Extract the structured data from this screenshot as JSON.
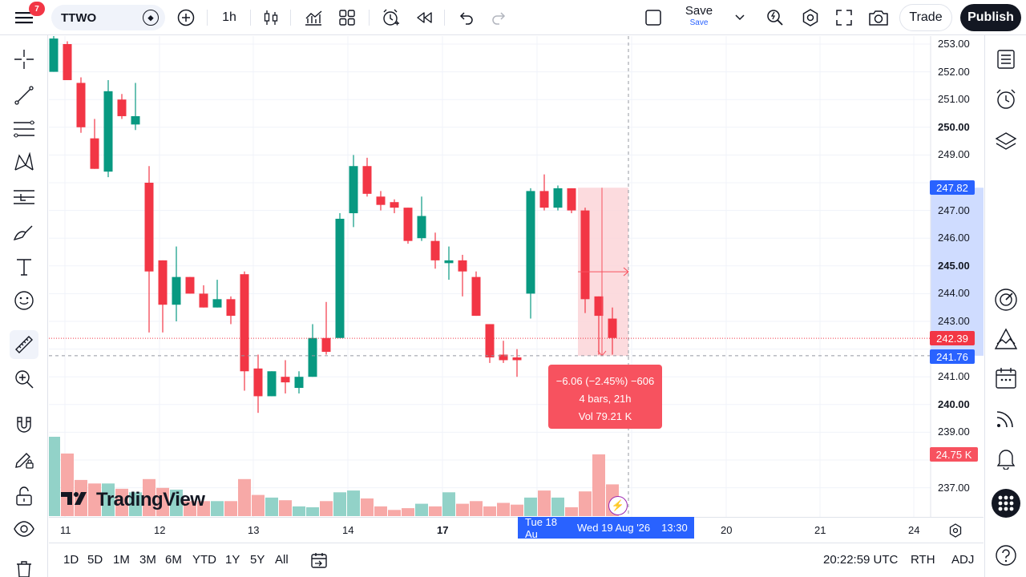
{
  "topbar": {
    "notification_count": "7",
    "symbol": "TTWO",
    "interval": "1h",
    "save_label": "Save",
    "save_sublabel": "Save",
    "trade_label": "Trade",
    "publish_label": "Publish"
  },
  "price_axis": {
    "labels": [
      "253.00",
      "252.00",
      "251.00",
      "250.00",
      "249.00",
      "247.00",
      "246.00",
      "245.00",
      "244.00",
      "243.00",
      "241.00",
      "240.00",
      "239.00",
      "237.00"
    ],
    "bold_labels": [
      "250.00",
      "245.00",
      "240.00"
    ],
    "tags": {
      "top_measure": "247.82",
      "last_price": "242.39",
      "bottom_measure": "241.76",
      "volume": "24.75 K"
    }
  },
  "time_axis": {
    "labels": [
      "11",
      "12",
      "13",
      "14",
      "17",
      "20",
      "21",
      "24"
    ],
    "tag_left": "Tue 18 Au",
    "tag_mid": "Wed 19 Aug '26",
    "tag_right": "13:30"
  },
  "measure": {
    "line1": "−6.06 (−2.45%) −606",
    "line2": "4 bars, 21h",
    "line3": "Vol 79.21 K"
  },
  "bottombar": {
    "ranges": [
      "1D",
      "5D",
      "1M",
      "3M",
      "6M",
      "YTD",
      "1Y",
      "5Y",
      "All"
    ],
    "clock": "20:22:59 UTC",
    "session": "RTH",
    "adjust": "ADJ"
  },
  "logo_text": "TradingView",
  "colors": {
    "up": "#089981",
    "down": "#f23645",
    "up_volume": "#92d2c8",
    "down_volume": "#f7a9a7",
    "accent": "#2962ff",
    "measure_fill": "#fbd5d8"
  },
  "chart_data": {
    "type": "candlestick",
    "symbol": "TTWO",
    "interval": "1h",
    "candles": [
      {
        "o": 252.0,
        "h": 253.5,
        "l": 252.0,
        "c": 253.2
      },
      {
        "o": 253.0,
        "h": 253.1,
        "l": 251.7,
        "c": 251.7
      },
      {
        "o": 251.6,
        "h": 251.8,
        "l": 249.8,
        "c": 250.0
      },
      {
        "o": 249.6,
        "h": 250.3,
        "l": 248.5,
        "c": 248.5
      },
      {
        "o": 248.4,
        "h": 251.7,
        "l": 248.2,
        "c": 251.3
      },
      {
        "o": 251.0,
        "h": 251.2,
        "l": 250.3,
        "c": 250.4
      },
      {
        "o": 250.1,
        "h": 251.6,
        "l": 249.9,
        "c": 250.4
      },
      {
        "o": 248.0,
        "h": 248.6,
        "l": 242.6,
        "c": 244.8
      },
      {
        "o": 245.2,
        "h": 245.2,
        "l": 242.6,
        "c": 243.6
      },
      {
        "o": 243.6,
        "h": 245.7,
        "l": 243.0,
        "c": 244.6
      },
      {
        "o": 244.6,
        "h": 244.6,
        "l": 244.0,
        "c": 244.0
      },
      {
        "o": 244.0,
        "h": 244.3,
        "l": 243.5,
        "c": 243.5
      },
      {
        "o": 243.5,
        "h": 244.5,
        "l": 243.5,
        "c": 243.8
      },
      {
        "o": 243.8,
        "h": 243.9,
        "l": 242.9,
        "c": 243.2
      },
      {
        "o": 244.7,
        "h": 244.8,
        "l": 240.5,
        "c": 241.2
      },
      {
        "o": 241.3,
        "h": 241.8,
        "l": 239.7,
        "c": 240.3
      },
      {
        "o": 240.3,
        "h": 241.2,
        "l": 240.3,
        "c": 241.2
      },
      {
        "o": 241.0,
        "h": 241.6,
        "l": 240.4,
        "c": 240.8
      },
      {
        "o": 240.6,
        "h": 241.2,
        "l": 240.4,
        "c": 241.0
      },
      {
        "o": 241.0,
        "h": 242.9,
        "l": 241.0,
        "c": 242.4
      },
      {
        "o": 242.4,
        "h": 243.7,
        "l": 241.8,
        "c": 241.9
      },
      {
        "o": 242.4,
        "h": 246.9,
        "l": 242.4,
        "c": 246.7
      },
      {
        "o": 246.9,
        "h": 249.0,
        "l": 246.4,
        "c": 248.6
      },
      {
        "o": 248.6,
        "h": 248.9,
        "l": 247.5,
        "c": 247.6
      },
      {
        "o": 247.5,
        "h": 247.7,
        "l": 247.0,
        "c": 247.2
      },
      {
        "o": 247.3,
        "h": 247.4,
        "l": 246.9,
        "c": 247.1
      },
      {
        "o": 247.1,
        "h": 247.1,
        "l": 245.8,
        "c": 245.9
      },
      {
        "o": 246.0,
        "h": 247.5,
        "l": 245.9,
        "c": 246.8
      },
      {
        "o": 245.9,
        "h": 246.2,
        "l": 244.9,
        "c": 245.2
      },
      {
        "o": 245.1,
        "h": 245.7,
        "l": 244.5,
        "c": 245.2
      },
      {
        "o": 245.2,
        "h": 245.4,
        "l": 243.9,
        "c": 244.8
      },
      {
        "o": 244.6,
        "h": 244.8,
        "l": 243.2,
        "c": 243.2
      },
      {
        "o": 242.9,
        "h": 242.9,
        "l": 241.5,
        "c": 241.7
      },
      {
        "o": 241.8,
        "h": 242.3,
        "l": 241.5,
        "c": 241.6
      },
      {
        "o": 241.7,
        "h": 242.0,
        "l": 241.0,
        "c": 241.6
      },
      {
        "o": 244.0,
        "h": 247.8,
        "l": 243.1,
        "c": 247.7
      },
      {
        "o": 247.7,
        "h": 248.3,
        "l": 247.0,
        "c": 247.1
      },
      {
        "o": 247.1,
        "h": 247.9,
        "l": 247.0,
        "c": 247.8
      },
      {
        "o": 247.8,
        "h": 247.8,
        "l": 246.9,
        "c": 247.0
      },
      {
        "o": 247.0,
        "h": 247.1,
        "l": 243.3,
        "c": 243.8
      },
      {
        "o": 243.9,
        "h": 243.9,
        "l": 241.8,
        "c": 243.2
      },
      {
        "o": 243.1,
        "h": 243.5,
        "l": 241.8,
        "c": 242.4
      }
    ],
    "volumes": [
      4.5,
      3.55,
      2.05,
      1.85,
      1.85,
      1.55,
      1.35,
      2.1,
      1.6,
      1.5,
      0.85,
      0.85,
      0.85,
      0.85,
      2.1,
      1.2,
      1.05,
      0.9,
      0.55,
      0.5,
      0.85,
      1.35,
      1.45,
      1.0,
      0.55,
      0.35,
      0.45,
      0.7,
      0.55,
      1.35,
      0.7,
      0.85,
      0.55,
      0.75,
      0.65,
      1.05,
      1.45,
      1.05,
      0.5,
      1.4,
      3.5,
      1.8
    ],
    "ylim": [
      236.3,
      253.3
    ],
    "last_price": 242.39,
    "measurement": {
      "from": 247.82,
      "to": 241.76,
      "change": -6.06,
      "percent": -2.45,
      "bars": 4
    }
  }
}
